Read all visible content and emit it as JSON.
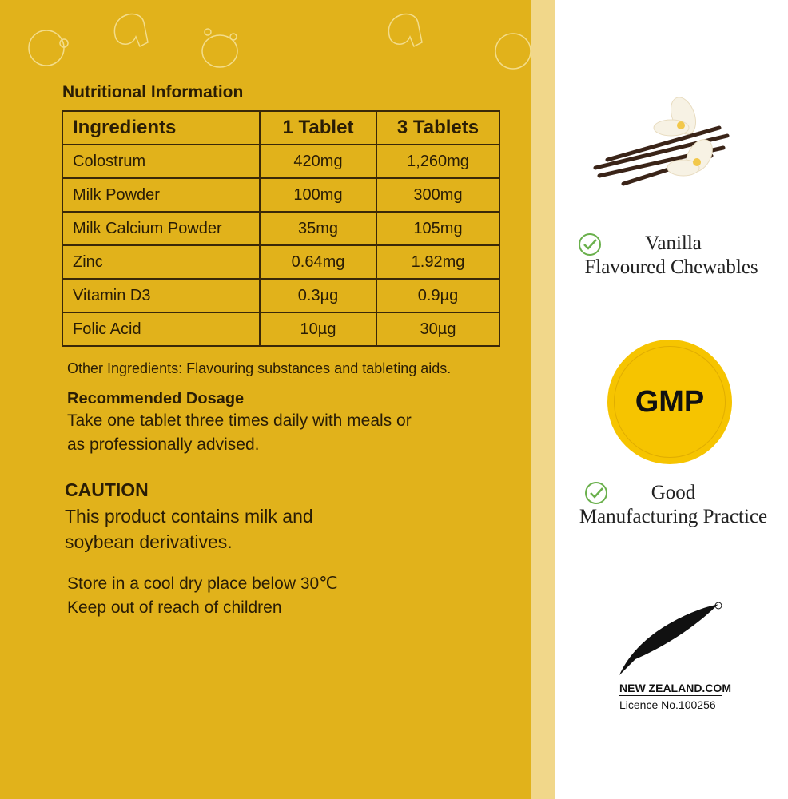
{
  "nutrition": {
    "title": "Nutritional Information",
    "headers": [
      "Ingredients",
      "1 Tablet",
      "3 Tablets"
    ],
    "rows": [
      [
        "Colostrum",
        "420mg",
        "1,260mg"
      ],
      [
        "Milk Powder",
        "100mg",
        "300mg"
      ],
      [
        "Milk Calcium Powder",
        "35mg",
        "105mg"
      ],
      [
        "Zinc",
        "0.64mg",
        "1.92mg"
      ],
      [
        "Vitamin D3",
        "0.3µg",
        "0.9µg"
      ],
      [
        "Folic Acid",
        "10µg",
        "30µg"
      ]
    ],
    "other": "Other Ingredients: Flavouring substances and tableting aids.",
    "dosage_title": "Recommended Dosage",
    "dosage_line1": "Take one tablet three times daily with meals or",
    "dosage_line2": "as professionally advised.",
    "caution_title": "CAUTION",
    "caution_line1": "This product contains milk and",
    "caution_line2": "soybean derivatives.",
    "storage_line1": "Store in a cool dry place below 30℃",
    "storage_line2": "Keep out of reach of children"
  },
  "features": {
    "vanilla_line1": "Vanilla",
    "vanilla_line2": "Flavoured Chewables",
    "gmp_badge": "GMP",
    "gmp_line1": "Good",
    "gmp_line2": "Manufacturing Practice",
    "nz_brand": "NEW ZEALAND.COM",
    "nz_licence": "Licence No.100256",
    "check_color": "#6ab04c",
    "gmp_color": "#f6c400"
  },
  "colors": {
    "panel": "#e1b21b",
    "strip": "#f1d78a"
  }
}
